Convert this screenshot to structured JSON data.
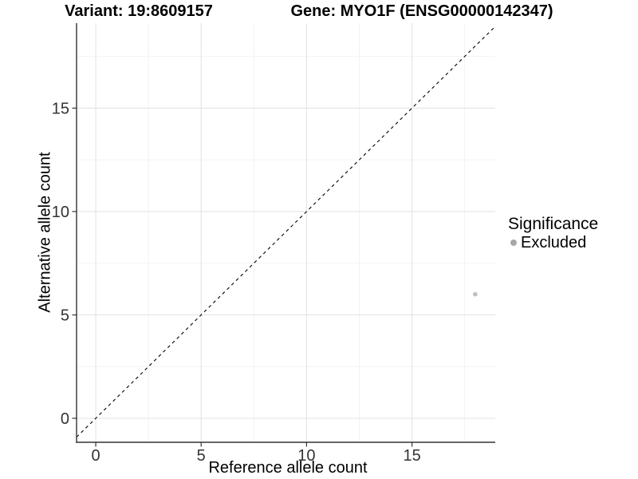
{
  "chart_data": {
    "type": "scatter",
    "title_left": "Variant: 19:8609157",
    "title_right": "Gene: MYO1F (ENSG00000142347)",
    "xlabel": "Reference allele count",
    "ylabel": "Alternative allele count",
    "xlim": [
      -0.91,
      18.95
    ],
    "ylim": [
      -1.16,
      19.11
    ],
    "xticks": [
      0,
      5,
      10,
      15
    ],
    "yticks": [
      0,
      5,
      10,
      15
    ],
    "xminor": [
      2.5,
      7.5,
      12.5,
      17.5
    ],
    "yminor": [
      2.5,
      7.5,
      12.5,
      17.5
    ],
    "grid": "major and minor gridlines on white panel",
    "identity_line": {
      "slope": 1,
      "intercept": 0,
      "style": "dashed",
      "color": "#000000"
    },
    "series": [
      {
        "name": "Excluded",
        "color": "#bfbfbf",
        "point_radius": 2.8,
        "points": [
          {
            "x": 18,
            "y": 6
          }
        ]
      }
    ],
    "legend": {
      "title": "Significance",
      "position": "right",
      "items": [
        {
          "label": "Excluded",
          "color": "#a8a8a8"
        }
      ]
    },
    "colors": {
      "grid_major": "#e4e4e4",
      "grid_minor": "#f1f1f1",
      "axis_line": "#333333",
      "tick_text": "#333333"
    }
  }
}
